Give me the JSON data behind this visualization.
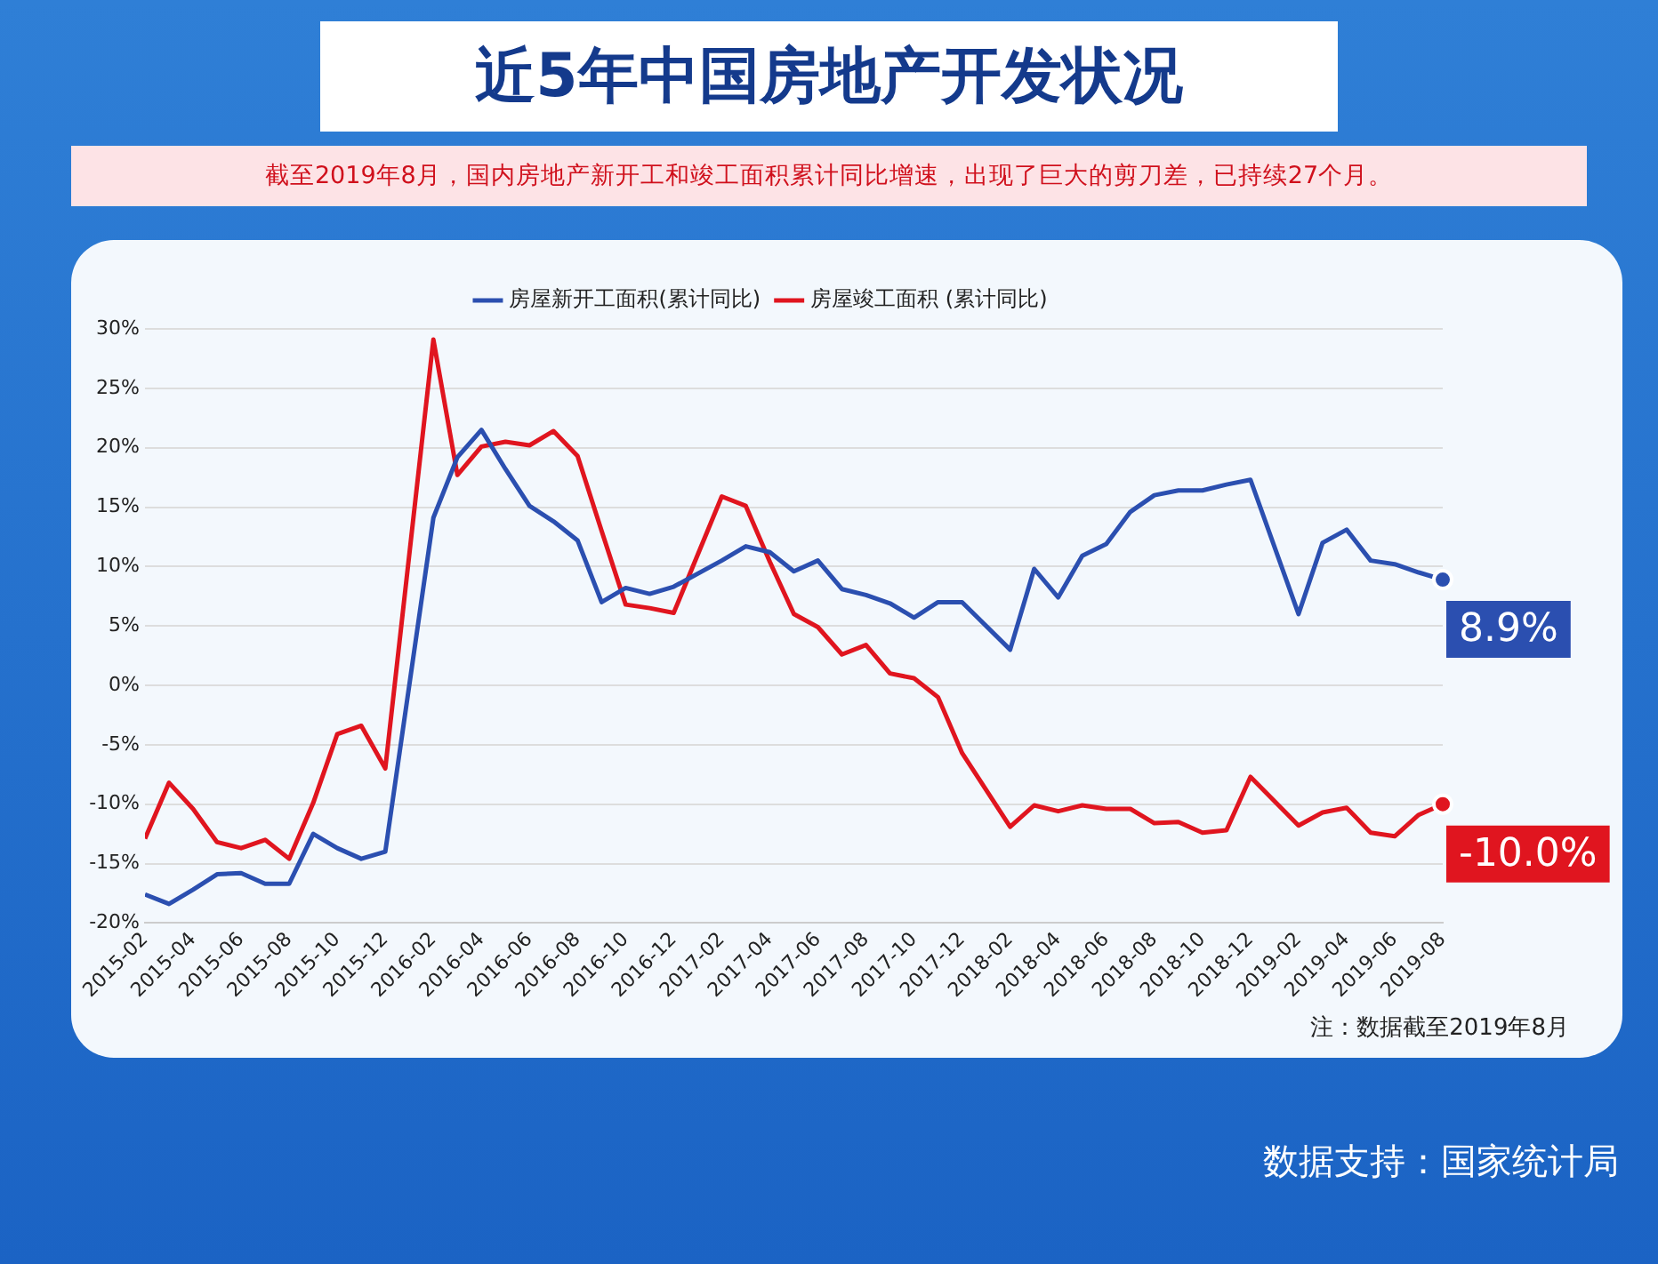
{
  "chart_data": {
    "type": "line",
    "title": "近5年中国房地产开发状况",
    "subtitle": "截至2019年8月，国内房地产新开工和竣工面积累计同比增速，出现了巨大的剪刀差，已持续27个月。",
    "x": [
      "2015-02",
      "2015-03",
      "2015-04",
      "2015-05",
      "2015-06",
      "2015-07",
      "2015-08",
      "2015-09",
      "2015-10",
      "2015-11",
      "2015-12",
      "2016-02",
      "2016-03",
      "2016-04",
      "2016-05",
      "2016-06",
      "2016-07",
      "2016-08",
      "2016-09",
      "2016-10",
      "2016-11",
      "2016-12",
      "2017-02",
      "2017-03",
      "2017-04",
      "2017-05",
      "2017-06",
      "2017-07",
      "2017-08",
      "2017-09",
      "2017-10",
      "2017-11",
      "2017-12",
      "2018-02",
      "2018-03",
      "2018-04",
      "2018-05",
      "2018-06",
      "2018-07",
      "2018-08",
      "2018-09",
      "2018-10",
      "2018-11",
      "2018-12",
      "2019-02",
      "2019-03",
      "2019-04",
      "2019-05",
      "2019-06",
      "2019-07",
      "2019-08"
    ],
    "series": [
      {
        "name": "房屋新开工面积(累计同比)",
        "color": "#2b4fb0",
        "values": [
          -17.6,
          -18.4,
          -17.2,
          -15.9,
          -15.8,
          -16.7,
          -16.7,
          -12.5,
          -13.7,
          -14.6,
          -14.0,
          14.1,
          19.2,
          21.5,
          18.2,
          15.1,
          13.8,
          12.2,
          7.0,
          8.2,
          7.7,
          8.3,
          10.5,
          11.7,
          11.2,
          9.6,
          10.5,
          8.1,
          7.6,
          6.9,
          5.7,
          7.0,
          7.0,
          3.0,
          9.8,
          7.4,
          10.9,
          11.9,
          14.6,
          16.0,
          16.4,
          16.4,
          16.9,
          17.3,
          6.0,
          12.0,
          13.1,
          10.5,
          10.2,
          9.5,
          8.9
        ]
      },
      {
        "name": "房屋竣工面积 (累计同比)",
        "color": "#e0151f",
        "values": [
          -12.9,
          -8.2,
          -10.4,
          -13.2,
          -13.7,
          -13.0,
          -14.6,
          -9.9,
          -4.1,
          -3.4,
          -7.0,
          29.1,
          17.7,
          20.1,
          20.5,
          20.2,
          21.4,
          19.3,
          13.0,
          6.8,
          6.5,
          6.1,
          15.9,
          15.1,
          10.4,
          6.0,
          4.9,
          2.6,
          3.4,
          1.0,
          0.6,
          -1.0,
          -5.7,
          -11.9,
          -10.1,
          -10.6,
          -10.1,
          -10.4,
          -10.4,
          -11.6,
          -11.5,
          -12.4,
          -12.2,
          -7.7,
          -11.8,
          -10.7,
          -10.3,
          -12.4,
          -12.7,
          -10.9,
          -10.0
        ]
      }
    ],
    "xlim": [
      "2015-02",
      "2019-08"
    ],
    "xticks": [
      "2015-02",
      "2015-04",
      "2015-06",
      "2015-08",
      "2015-10",
      "2015-12",
      "2016-02",
      "2016-04",
      "2016-06",
      "2016-08",
      "2016-10",
      "2016-12",
      "2017-02",
      "2017-04",
      "2017-06",
      "2017-08",
      "2017-10",
      "2017-12",
      "2018-02",
      "2018-04",
      "2018-06",
      "2018-08",
      "2018-10",
      "2018-12",
      "2019-02",
      "2019-04",
      "2019-06",
      "2019-08"
    ],
    "ylim": [
      -20,
      30
    ],
    "yticks": [
      {
        "value": -20,
        "label": "-20%"
      },
      {
        "value": -15,
        "label": "-15%"
      },
      {
        "value": -10,
        "label": "-10%"
      },
      {
        "value": -5,
        "label": "-5%"
      },
      {
        "value": 0,
        "label": "0%"
      },
      {
        "value": 5,
        "label": "5%"
      },
      {
        "value": 10,
        "label": "10%"
      },
      {
        "value": 15,
        "label": "15%"
      },
      {
        "value": 20,
        "label": "20%"
      },
      {
        "value": 25,
        "label": "25%"
      },
      {
        "value": 30,
        "label": "30%"
      }
    ],
    "grid": "y",
    "legend": "top",
    "marker": "none",
    "line_style": "solid",
    "annotations": [
      {
        "text": "8.9%",
        "x": "2019-08",
        "y": 8.9
      },
      {
        "text": "-10.0%",
        "x": "2019-08",
        "y": -10.0
      },
      "注：数据截至2019年8月",
      "数据支持：国家统计局"
    ]
  }
}
